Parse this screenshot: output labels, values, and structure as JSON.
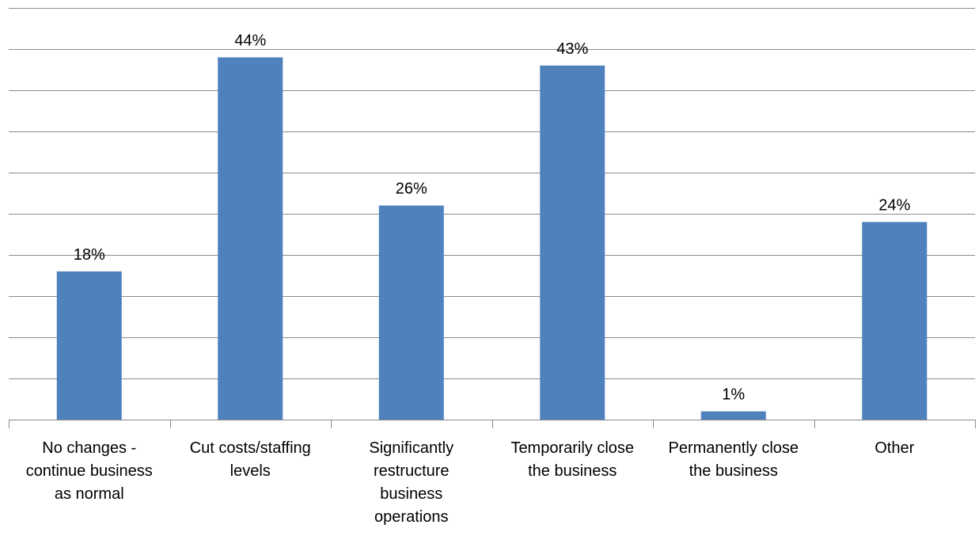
{
  "chart_data": {
    "type": "bar",
    "categories": [
      "No changes - continue business as normal",
      "Cut costs/staffing levels",
      "Significantly restructure business operations",
      "Temporarily close the business",
      "Permanently close the business",
      "Other"
    ],
    "category_lines": [
      [
        "No changes -",
        "continue business",
        "as normal"
      ],
      [
        "Cut costs/staffing",
        "levels"
      ],
      [
        "Significantly",
        "restructure",
        "business",
        "operations"
      ],
      [
        "Temporarily close",
        "the business"
      ],
      [
        "Permanently close",
        "the business"
      ],
      [
        "Other"
      ]
    ],
    "values": [
      18,
      44,
      26,
      43,
      1,
      24
    ],
    "data_labels": [
      "18%",
      "44%",
      "26%",
      "43%",
      "1%",
      "24%"
    ],
    "ylim": [
      0,
      50
    ],
    "ytick_step": 5,
    "grid": true,
    "legend": "none",
    "bar_color": "#4f81bd"
  }
}
